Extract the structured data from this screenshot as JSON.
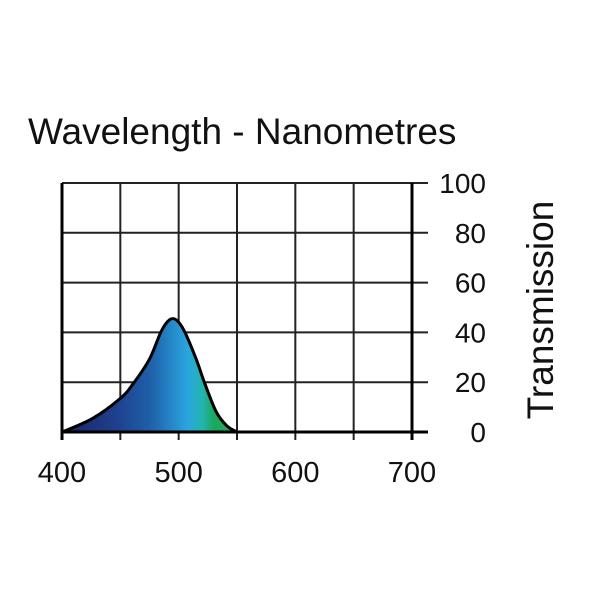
{
  "chart_data": {
    "type": "area",
    "title": "Wavelength - Nanometres",
    "xlabel": "Wavelength - Nanometres",
    "ylabel": "Transmission",
    "xlim": [
      400,
      700
    ],
    "ylim": [
      0,
      100
    ],
    "grid": true,
    "x_ticks": [
      400,
      450,
      500,
      550,
      600,
      650,
      700
    ],
    "x_tick_labels": [
      "400",
      "500",
      "600",
      "700"
    ],
    "y_ticks": [
      0,
      20,
      40,
      60,
      80,
      100
    ],
    "y_tick_labels": [
      "0",
      "20",
      "40",
      "60",
      "80",
      "100"
    ],
    "y_axis_side": "right",
    "series": [
      {
        "name": "Transmission",
        "x": [
          400,
          426,
          450,
          461,
          475,
          485,
          492,
          498,
          505,
          515,
          522,
          532,
          541,
          550
        ],
        "y": [
          0,
          5.4,
          13.5,
          19.4,
          29.3,
          40.4,
          45,
          45,
          40.4,
          29.3,
          20,
          8.3,
          2.6,
          0
        ]
      }
    ],
    "fill_colors": [
      "#1b2466",
      "#1e3f8c",
      "#1f5ea8",
      "#2aa6e0",
      "#23b4b0",
      "#1aa85c",
      "#1fb060"
    ]
  }
}
